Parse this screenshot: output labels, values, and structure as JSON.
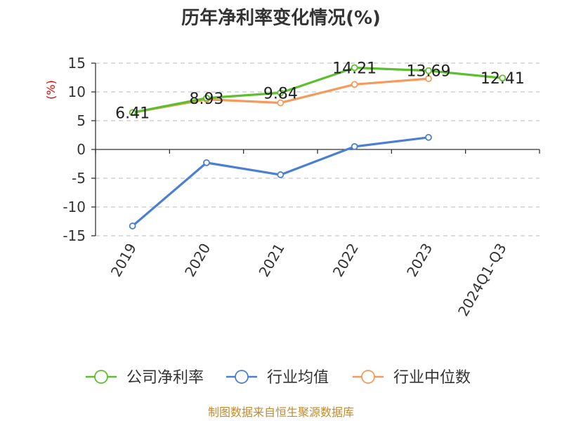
{
  "chart_data": {
    "type": "line",
    "title": "历年净利率变化情况(%)",
    "ylabel": "(%)",
    "categories": [
      "2019",
      "2020",
      "2021",
      "2022",
      "2023",
      "2024Q1-Q3"
    ],
    "ylim": [
      -15,
      15
    ],
    "yticks": [
      "15",
      "10",
      "5",
      "0",
      "-5",
      "-10",
      "-15"
    ],
    "grid": true,
    "legend_position": "bottom",
    "series": [
      {
        "name": "公司净利率",
        "color": "#5cc02d",
        "values": [
          6.41,
          8.93,
          9.84,
          14.21,
          13.69,
          12.41
        ],
        "labels": [
          "6.41",
          "8.93",
          "9.84",
          "14.21",
          "13.69",
          "12.41"
        ]
      },
      {
        "name": "行业均值",
        "color": "#4a7fd4",
        "values": [
          -13.3,
          -2.3,
          -4.4,
          0.5,
          2.1,
          null
        ]
      },
      {
        "name": "行业中位数",
        "color": "#f59a5b",
        "values": [
          6.4,
          8.7,
          8.1,
          11.3,
          12.3,
          null
        ]
      }
    ]
  },
  "source": "制图数据来自恒生聚源数据库"
}
